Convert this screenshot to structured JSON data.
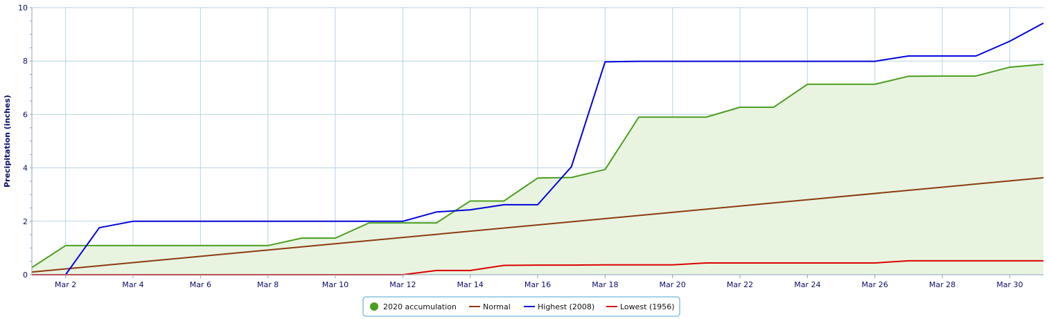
{
  "chart_data": {
    "type": "line",
    "title": "",
    "xlabel": "",
    "ylabel": "Precipitation (inches)",
    "ylim": [
      0,
      10
    ],
    "xlim": [
      1,
      31
    ],
    "grid": true,
    "legend_position": "bottom-center",
    "y_ticks": [
      {
        "value": 0,
        "label": "0"
      },
      {
        "value": 2,
        "label": "2"
      },
      {
        "value": 4,
        "label": "4"
      },
      {
        "value": 6,
        "label": "6"
      },
      {
        "value": 8,
        "label": "8"
      },
      {
        "value": 10,
        "label": "10"
      }
    ],
    "x_ticks": [
      {
        "value": 2,
        "label": "Mar 2"
      },
      {
        "value": 4,
        "label": "Mar 4"
      },
      {
        "value": 6,
        "label": "Mar 6"
      },
      {
        "value": 8,
        "label": "Mar 8"
      },
      {
        "value": 10,
        "label": "Mar 10"
      },
      {
        "value": 12,
        "label": "Mar 12"
      },
      {
        "value": 14,
        "label": "Mar 14"
      },
      {
        "value": 16,
        "label": "Mar 16"
      },
      {
        "value": 18,
        "label": "Mar 18"
      },
      {
        "value": 20,
        "label": "Mar 20"
      },
      {
        "value": 22,
        "label": "Mar 22"
      },
      {
        "value": 24,
        "label": "Mar 24"
      },
      {
        "value": 26,
        "label": "Mar 26"
      },
      {
        "value": 28,
        "label": "Mar 28"
      },
      {
        "value": 30,
        "label": "Mar 30"
      }
    ],
    "series": [
      {
        "name": "2020 accumulation",
        "color": "#4a9e1e",
        "fill": "#e8f4e0",
        "x": [
          1,
          2,
          3,
          4,
          5,
          6,
          7,
          8,
          9,
          10,
          11,
          12,
          13,
          14,
          15,
          16,
          17,
          18,
          19,
          20,
          21,
          22,
          23,
          24,
          25,
          26,
          27,
          28,
          29,
          30,
          31
        ],
        "values": [
          0.27,
          1.09,
          1.09,
          1.09,
          1.09,
          1.09,
          1.09,
          1.09,
          1.37,
          1.37,
          1.94,
          1.94,
          1.94,
          2.76,
          2.76,
          3.62,
          3.64,
          3.94,
          5.9,
          5.9,
          5.9,
          6.27,
          6.27,
          7.13,
          7.13,
          7.13,
          7.43,
          7.44,
          7.44,
          7.77,
          7.88
        ]
      },
      {
        "name": "Normal",
        "color": "#8b3a0f",
        "x": [
          1,
          31
        ],
        "values": [
          0.1,
          3.63
        ]
      },
      {
        "name": "Highest (2008)",
        "color": "#0000dd",
        "x": [
          1,
          2,
          3,
          4,
          5,
          6,
          7,
          8,
          9,
          10,
          11,
          12,
          13,
          14,
          15,
          16,
          17,
          18,
          19,
          20,
          21,
          22,
          23,
          24,
          25,
          26,
          27,
          28,
          29,
          30,
          31
        ],
        "values": [
          0.0,
          0.0,
          1.76,
          2.0,
          2.0,
          2.0,
          2.0,
          2.0,
          2.0,
          2.0,
          2.0,
          2.0,
          2.35,
          2.43,
          2.62,
          2.62,
          4.04,
          7.97,
          7.99,
          7.99,
          7.99,
          7.99,
          7.99,
          7.99,
          7.99,
          7.99,
          8.19,
          8.19,
          8.19,
          8.74,
          9.42
        ]
      },
      {
        "name": "Lowest (1956)",
        "color": "#dd0000",
        "x": [
          1,
          2,
          3,
          4,
          5,
          6,
          7,
          8,
          9,
          10,
          11,
          12,
          13,
          14,
          15,
          16,
          17,
          18,
          19,
          20,
          21,
          22,
          23,
          24,
          25,
          26,
          27,
          28,
          29,
          30,
          31
        ],
        "values": [
          0,
          0,
          0,
          0,
          0,
          0,
          0,
          0,
          0,
          0,
          0,
          0,
          0.16,
          0.16,
          0.35,
          0.36,
          0.36,
          0.37,
          0.37,
          0.37,
          0.44,
          0.44,
          0.44,
          0.44,
          0.44,
          0.44,
          0.52,
          0.52,
          0.52,
          0.52,
          0.52
        ]
      }
    ]
  },
  "legend": {
    "items": [
      {
        "label": "2020 accumulation",
        "symbol": "dot",
        "color": "#4a9e1e"
      },
      {
        "label": "Normal",
        "symbol": "line",
        "color": "#8b3a0f"
      },
      {
        "label": "Highest (2008)",
        "symbol": "line",
        "color": "#0000dd"
      },
      {
        "label": "Lowest (1956)",
        "symbol": "line",
        "color": "#dd0000"
      }
    ]
  }
}
